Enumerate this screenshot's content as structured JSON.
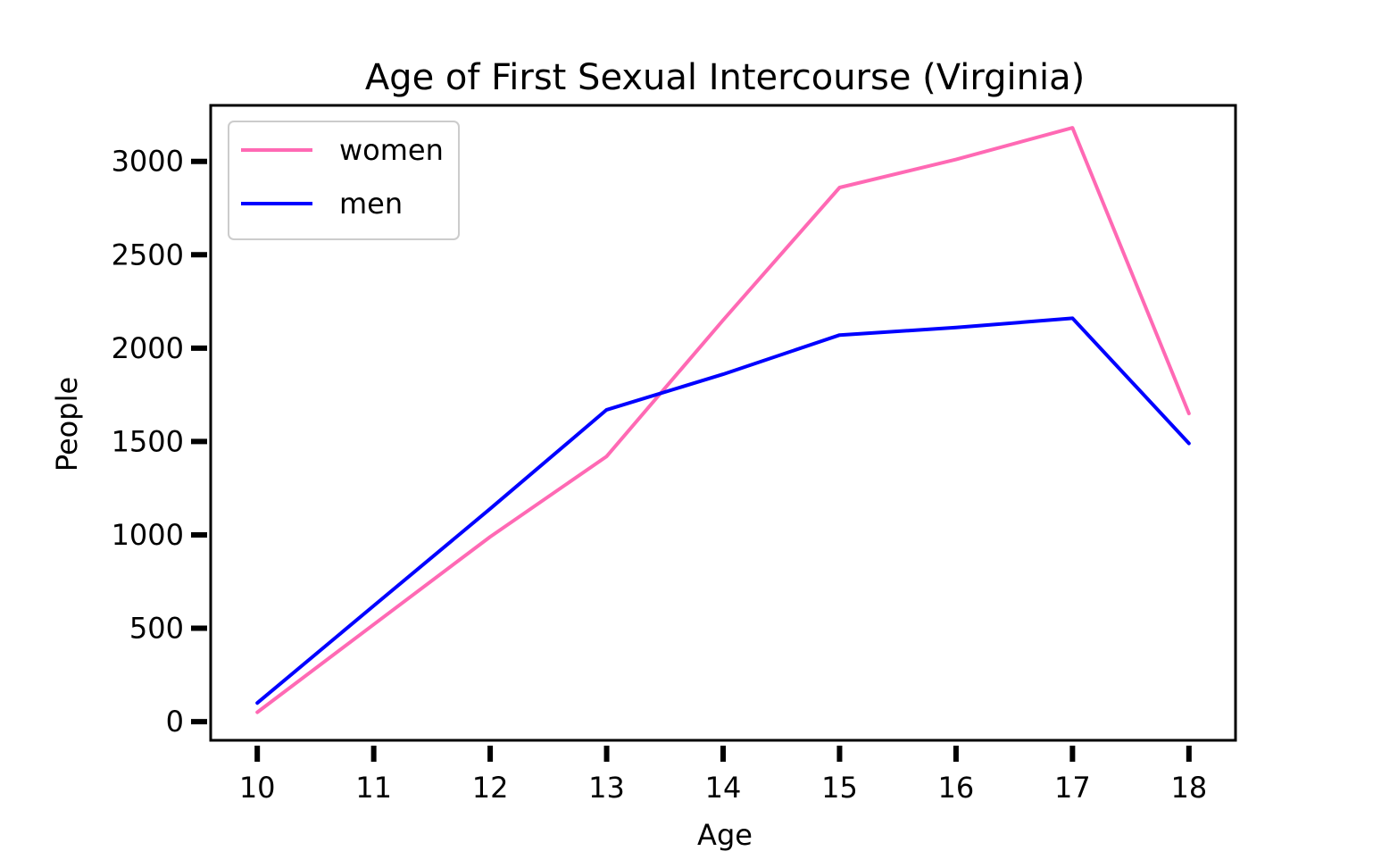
{
  "chart_data": {
    "type": "line",
    "title": "Age of First Sexual Intercourse (Virginia)",
    "xlabel": "Age",
    "ylabel": "People",
    "xlim": [
      9.6,
      18.4
    ],
    "ylim": [
      -100,
      3300
    ],
    "xticks": [
      10,
      11,
      12,
      13,
      14,
      15,
      16,
      17,
      18
    ],
    "yticks": [
      0,
      500,
      1000,
      1500,
      2000,
      2500,
      3000
    ],
    "grid": false,
    "legend_position": "top-left",
    "x": [
      10,
      11,
      12,
      13,
      14,
      15,
      16,
      17,
      18
    ],
    "series": [
      {
        "name": "women",
        "color": "#ff69b4",
        "values": [
          50,
          520,
          990,
          1420,
          2150,
          2860,
          3010,
          3180,
          1650
        ]
      },
      {
        "name": "men",
        "color": "#0000ff",
        "values": [
          100,
          620,
          1140,
          1670,
          1860,
          2070,
          2110,
          2160,
          1490
        ]
      }
    ]
  }
}
